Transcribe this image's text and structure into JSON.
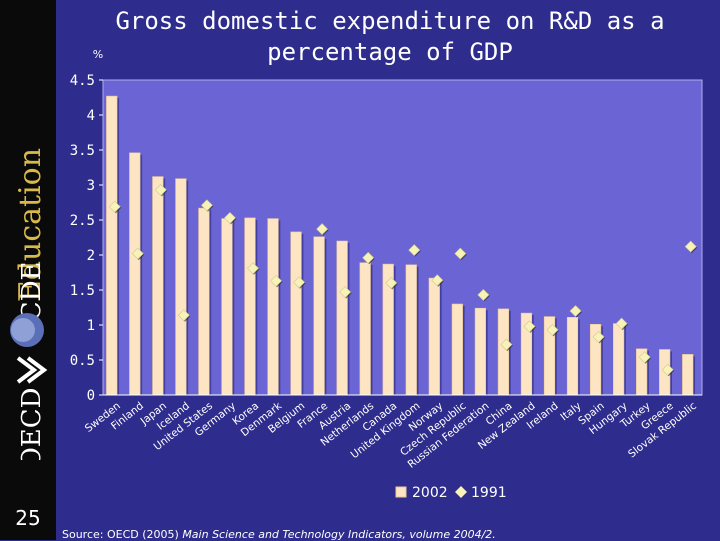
{
  "sidebar": {
    "brand_word": "Education",
    "logo_text": "OCDE",
    "logo_text_2": "OECD",
    "slide_number": "25"
  },
  "title": {
    "line1": "Gross domestic expenditure on R&D as a",
    "line2": "percentage of GDP"
  },
  "source": {
    "prefix": "Source: OECD (2005) ",
    "italic": "Main Science and Technology Indicators, volume 2004/2."
  },
  "colors": {
    "background": "#2e2c8c",
    "plot_area": "#6a64d4",
    "bar": "#fde5c4",
    "marker": "#f7f2b8",
    "text": "#ffffff",
    "sidebar": "#0a0a0a",
    "brand_gold": "#d8b94a"
  },
  "chart_data": {
    "type": "bar",
    "title": "Gross domestic expenditure on R&D as a percentage of GDP",
    "ylabel": "%",
    "xlabel": "",
    "ylim": [
      0,
      4.5
    ],
    "yticks": [
      "0",
      "0.5",
      "1",
      "1.5",
      "2",
      "2.5",
      "3",
      "3.5",
      "4",
      "4.5"
    ],
    "legend_position": "bottom-right",
    "categories": [
      "Sweden",
      "Finland",
      "Japan",
      "Iceland",
      "United States",
      "Germany",
      "Korea",
      "Denmark",
      "Belgium",
      "France",
      "Austria",
      "Netherlands",
      "Canada",
      "United Kingdom",
      "Norway",
      "Czech Republic",
      "Russian Federation",
      "China",
      "New Zealand",
      "Ireland",
      "Italy",
      "Spain",
      "Hungary",
      "Turkey",
      "Greece",
      "Slovak Republic"
    ],
    "series": [
      {
        "name": "2002",
        "type": "bar",
        "values": [
          4.27,
          3.46,
          3.12,
          3.09,
          2.67,
          2.52,
          2.53,
          2.52,
          2.33,
          2.26,
          2.2,
          1.89,
          1.87,
          1.86,
          1.67,
          1.3,
          1.24,
          1.23,
          1.17,
          1.12,
          1.11,
          1.01,
          1.02,
          0.66,
          0.65,
          0.58
        ]
      },
      {
        "name": "1991",
        "type": "marker",
        "values": [
          2.69,
          2.02,
          2.93,
          1.14,
          2.71,
          2.53,
          1.81,
          1.63,
          1.61,
          2.37,
          1.47,
          1.96,
          1.6,
          2.07,
          1.64,
          2.02,
          1.43,
          0.72,
          0.98,
          0.93,
          1.2,
          0.83,
          1.02,
          0.54,
          0.36,
          2.12
        ]
      }
    ]
  }
}
